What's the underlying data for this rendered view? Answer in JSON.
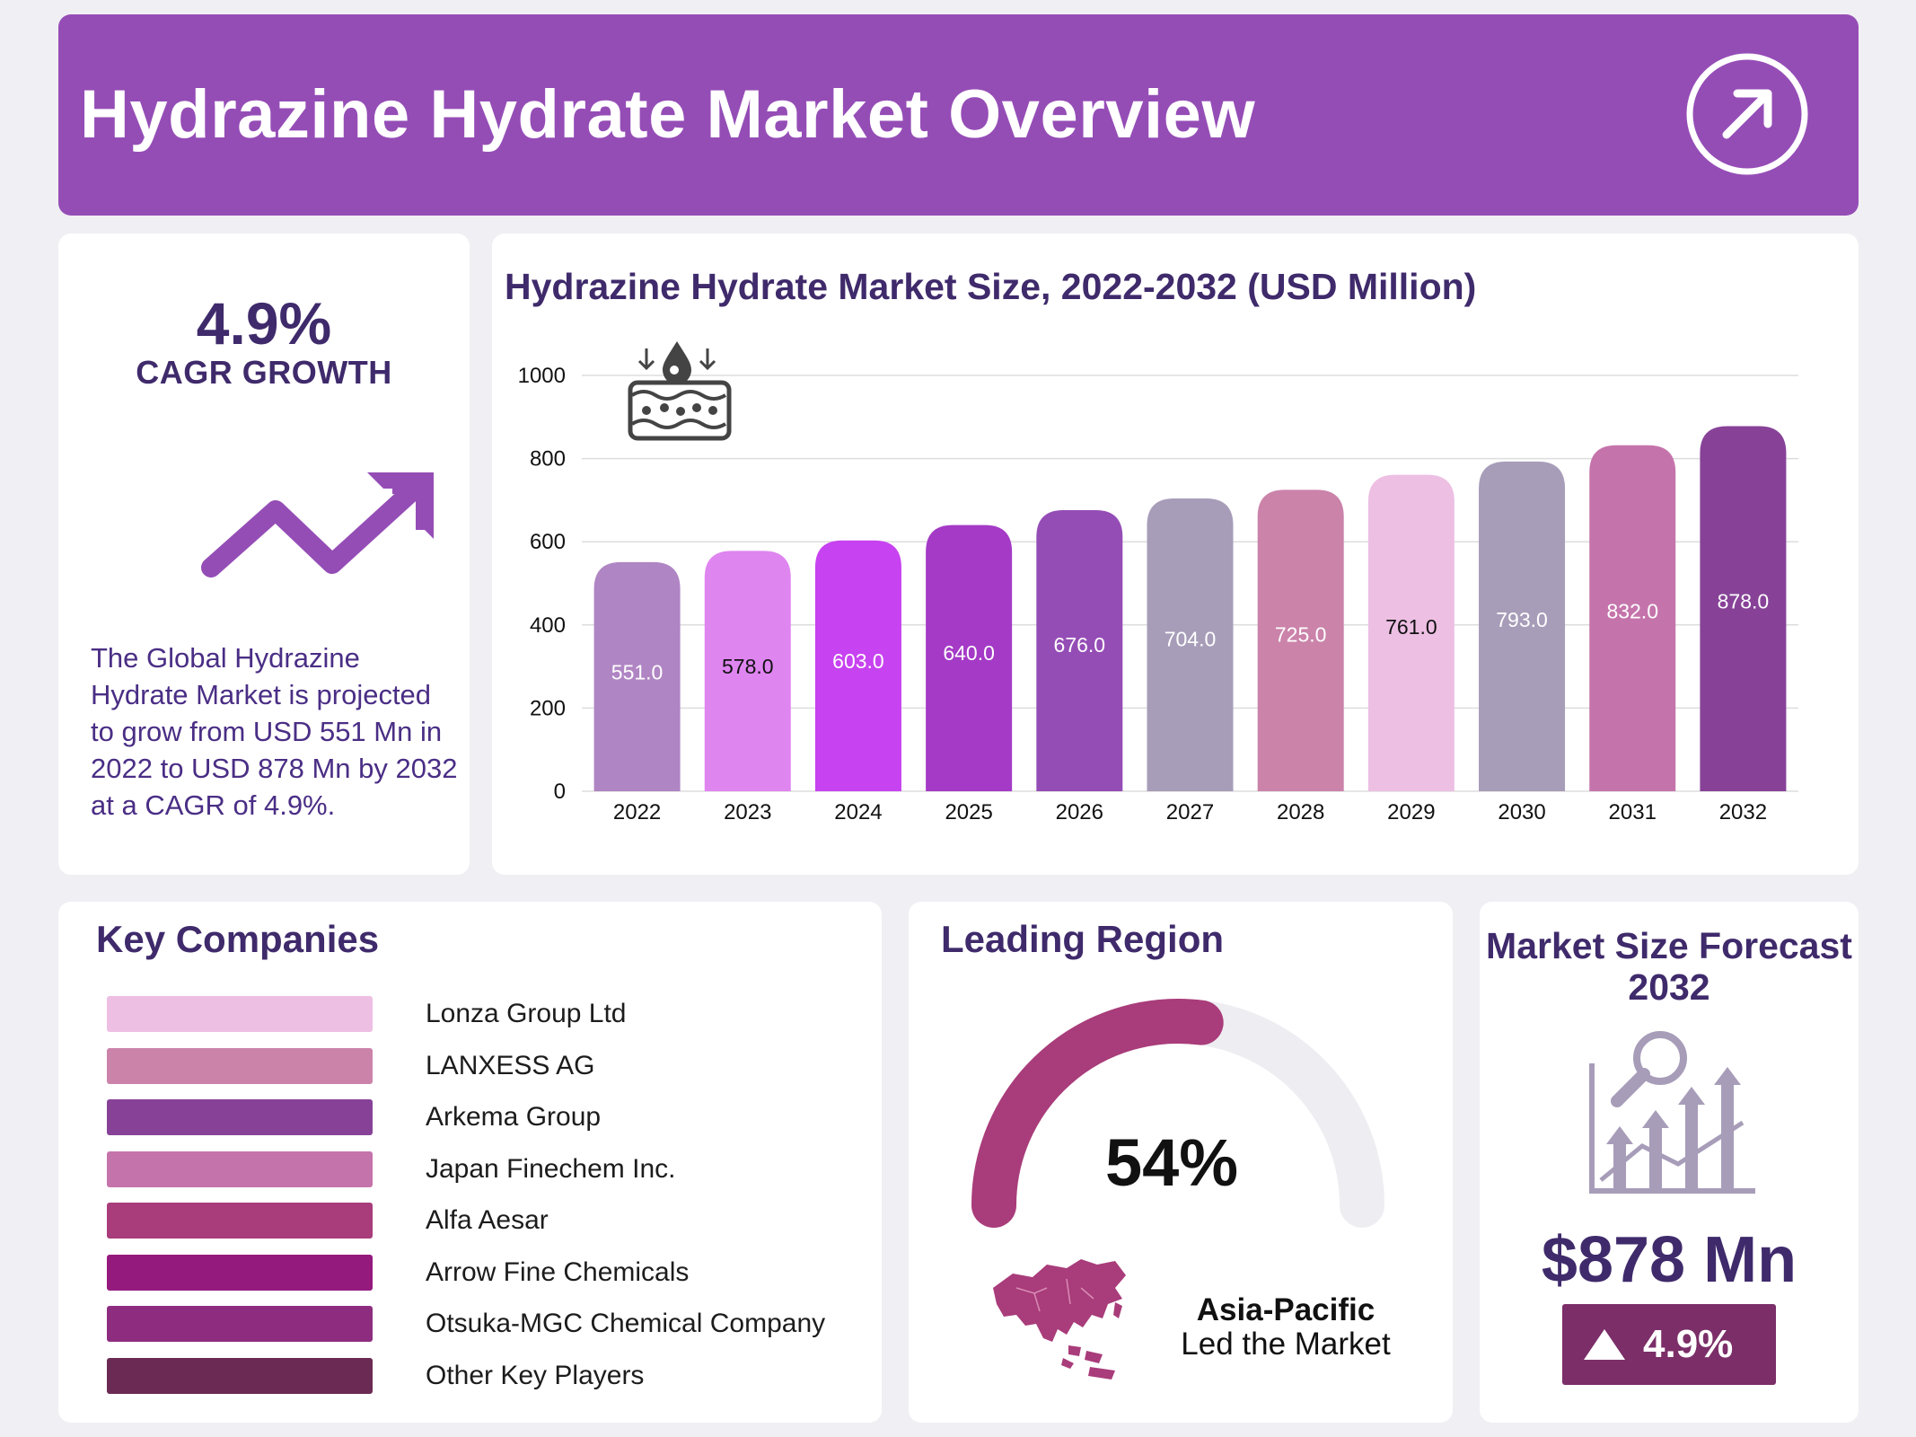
{
  "header": {
    "title": "Hydrazine Hydrate Market Overview",
    "icon": "arrow-up-right-circle-icon"
  },
  "cagr": {
    "value": "4.9%",
    "label": "CAGR GROWTH",
    "icon": "trend-up-arrow-icon",
    "description": "The Global Hydrazine Hydrate Market is projected to grow from USD 551 Mn in 2022 to USD 878 Mn by 2032 at a CAGR of 4.9%."
  },
  "chart_data": {
    "type": "bar",
    "title": "Hydrazine Hydrate Market Size, 2022-2032 (USD Million)",
    "xlabel": "",
    "ylabel": "",
    "categories": [
      "2022",
      "2023",
      "2024",
      "2025",
      "2026",
      "2027",
      "2028",
      "2029",
      "2030",
      "2031",
      "2032"
    ],
    "values": [
      551.0,
      578.0,
      603.0,
      640.0,
      676.0,
      704.0,
      725.0,
      761.0,
      793.0,
      832.0,
      878.0
    ],
    "value_labels": [
      "551.0",
      "578.0",
      "603.0",
      "640.0",
      "676.0",
      "704.0",
      "725.0",
      "761.0",
      "793.0",
      "832.0",
      "878.0"
    ],
    "bar_colors": [
      "#b085c4",
      "#df85f0",
      "#c742f0",
      "#a43ac6",
      "#954db6",
      "#a79db9",
      "#cb83aa",
      "#edbfe3",
      "#a79db9",
      "#c574ab",
      "#874298"
    ],
    "label_colors": [
      "#ffffff",
      "#111111",
      "#ffffff",
      "#ffffff",
      "#ffffff",
      "#ffffff",
      "#ffffff",
      "#111111",
      "#ffffff",
      "#ffffff",
      "#ffffff"
    ],
    "yticks": [
      "0",
      "200",
      "400",
      "600",
      "800",
      "1000"
    ],
    "ylim": [
      0,
      1000
    ],
    "grid": true,
    "legend": "none",
    "decor_icon": "chemical-layer-icon"
  },
  "companies": {
    "title": "Key Companies",
    "items": [
      {
        "name": "Lonza Group Ltd",
        "color": "#edbfe3"
      },
      {
        "name": "LANXESS AG",
        "color": "#cb83aa"
      },
      {
        "name": "Arkema Group",
        "color": "#874298"
      },
      {
        "name": "Japan Finechem Inc.",
        "color": "#c574ab"
      },
      {
        "name": "Alfa Aesar",
        "color": "#a93c7a"
      },
      {
        "name": "Arrow Fine Chemicals",
        "color": "#951a7e"
      },
      {
        "name": "Otsuka-MGC Chemical Company",
        "color": "#8e2d80"
      },
      {
        "name": "Other Key Players",
        "color": "#6b2a53"
      }
    ]
  },
  "region": {
    "title": "Leading Region",
    "share_label": "54%",
    "share_fraction": 0.54,
    "gauge_color": "#a93c7a",
    "track_color": "#eeedf2",
    "name": "Asia-Pacific",
    "subtitle": "Led the Market",
    "map_icon": "asia-map-icon"
  },
  "market_size": {
    "title": "Market Size Forecast 2032",
    "value": "$878 Mn",
    "badge": "4.9%",
    "badge_icon": "triangle-up-icon",
    "icon": "analytics-magnifier-icon"
  }
}
